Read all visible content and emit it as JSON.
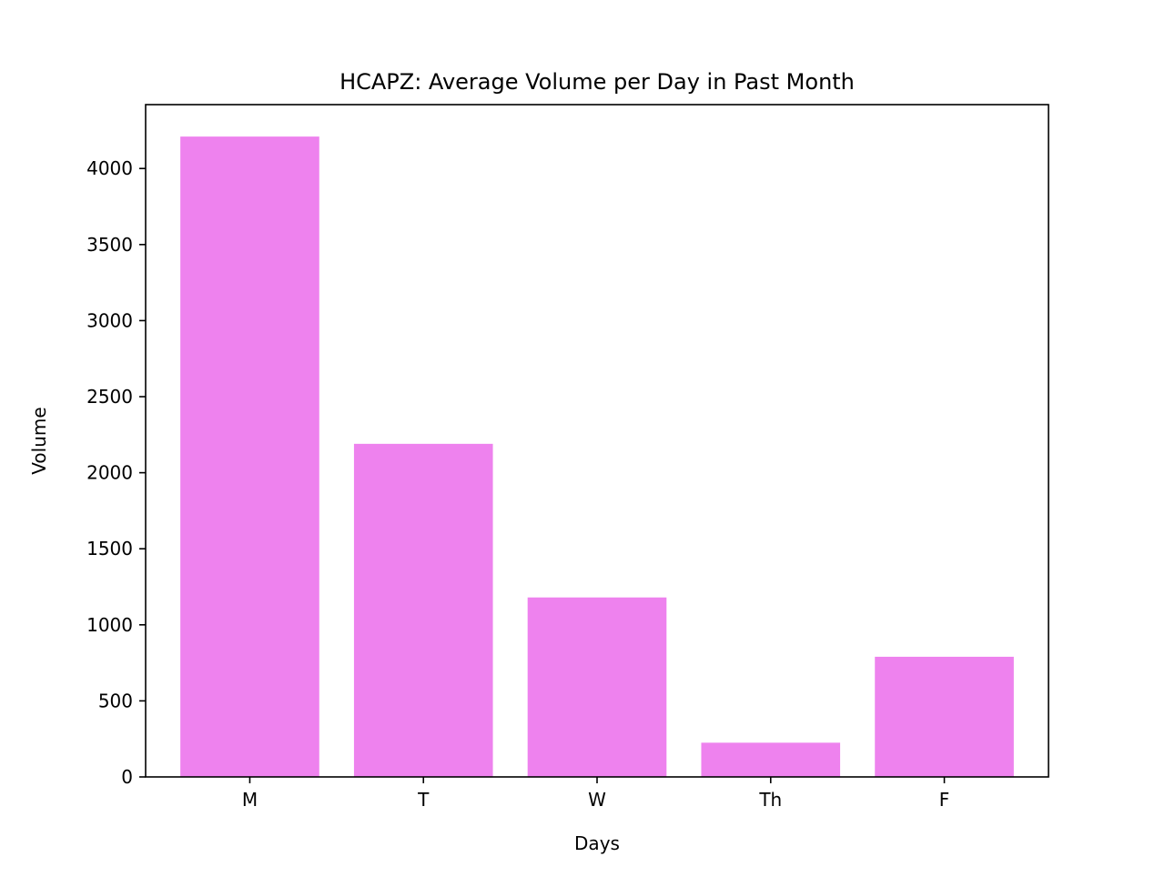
{
  "chart_data": {
    "type": "bar",
    "title": "HCAPZ: Average Volume per Day in Past Month",
    "xlabel": "Days",
    "ylabel": "Volume",
    "categories": [
      "M",
      "T",
      "W",
      "Th",
      "F"
    ],
    "values": [
      4210,
      2190,
      1180,
      225,
      790
    ],
    "ylim": [
      0,
      4420
    ],
    "yticks": [
      0,
      500,
      1000,
      1500,
      2000,
      2500,
      3000,
      3500,
      4000
    ],
    "grid": false,
    "legend": "none",
    "bar_color": "#ee82ee"
  }
}
